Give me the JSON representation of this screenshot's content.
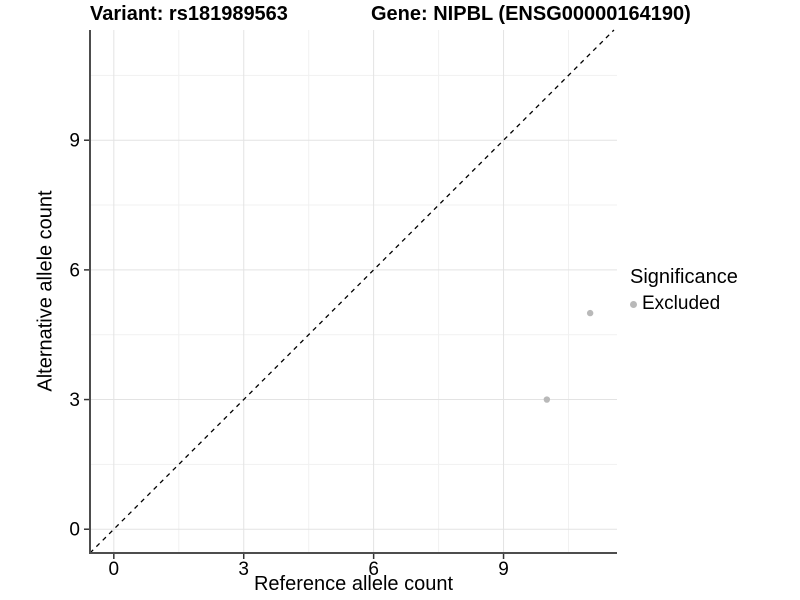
{
  "chart_data": {
    "type": "scatter",
    "title_left": "Variant: rs181989563",
    "title_right": "Gene: NIPBL (ENSG00000164190)",
    "xlabel": "Reference allele count",
    "ylabel": "Alternative allele count",
    "xlim": [
      -0.55,
      11.62
    ],
    "ylim": [
      -0.55,
      11.55
    ],
    "x_major_ticks": [
      0,
      3,
      6,
      9
    ],
    "y_major_ticks": [
      0,
      3,
      6,
      9
    ],
    "x_minor_gridlines": [
      1.5,
      4.5,
      7.5,
      10.5
    ],
    "y_minor_gridlines": [
      1.5,
      4.5,
      7.5,
      10.5
    ],
    "grid": true,
    "series": [
      {
        "name": "Excluded",
        "color": "#b9b9b9",
        "points": [
          {
            "x": 10,
            "y": 3
          },
          {
            "x": 11,
            "y": 5
          }
        ]
      }
    ],
    "reference_line": {
      "kind": "identity",
      "slope": 1,
      "intercept": 0,
      "style": "dashed",
      "color": "#000000"
    },
    "legend": {
      "title": "Significance",
      "position": "right",
      "entries": [
        {
          "label": "Excluded",
          "color": "#b9b9b9"
        }
      ]
    },
    "colors": {
      "background": "#ffffff",
      "axis_line": "#4d4d4d",
      "tick_mark": "#333333",
      "major_grid": "#e3e3e3",
      "minor_grid": "#f1f1f1",
      "text": "#000000",
      "point": "#b9b9b9"
    }
  }
}
